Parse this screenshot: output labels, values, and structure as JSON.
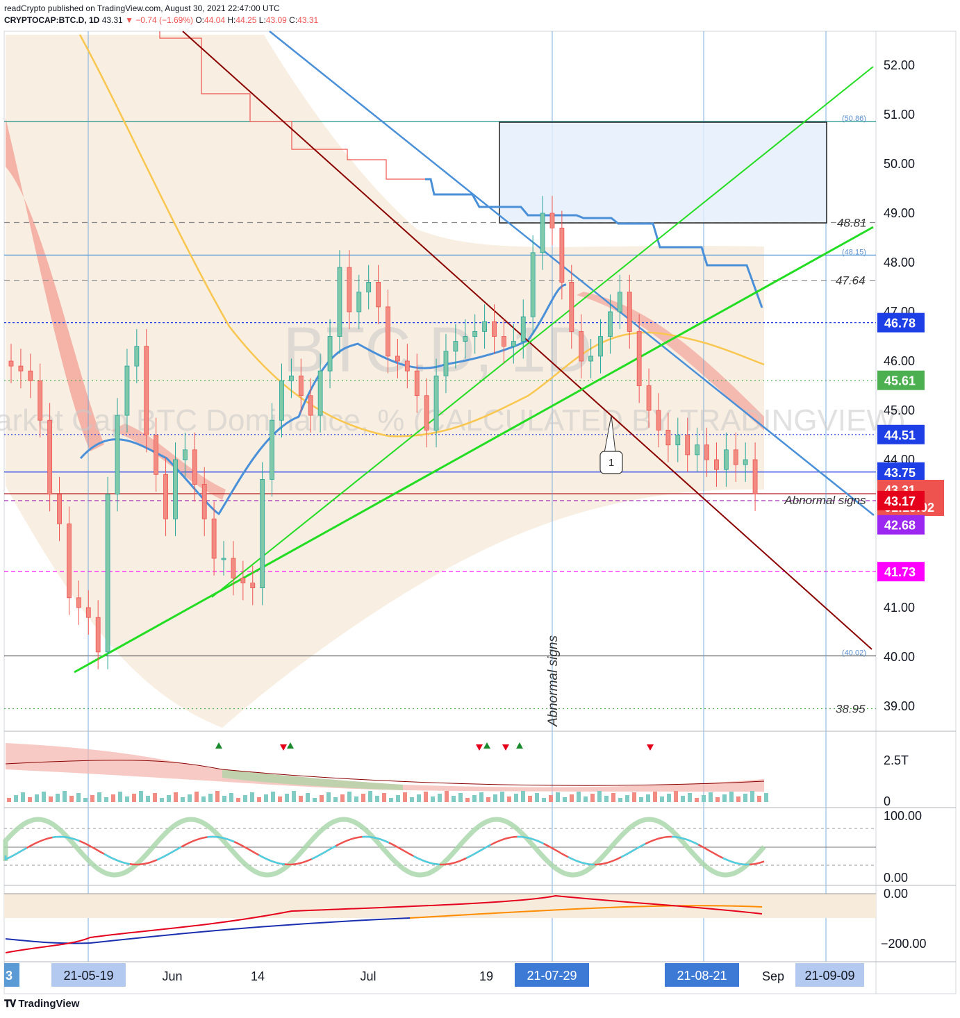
{
  "header": {
    "line1": "readCrypto published on TradingView.com, August 30, 2021 22:47:00 UTC",
    "symbol": "CRYPTOCAP:BTC.D, 1D",
    "last": "43.31",
    "change": "▼ −0.74 (−1.69%)",
    "o_label": "O:",
    "o": "44.04",
    "h_label": "H:",
    "h": "44.25",
    "l_label": "L:",
    "l": "43.09",
    "c_label": "C:",
    "c": "43.31"
  },
  "watermark": {
    "big": "BTC.D, 1D",
    "sub": "Market Cap BTC Dominance, % (CALCULATED BY TRADINGVIEW)"
  },
  "footer": {
    "logo_text": "17 TradingView"
  },
  "colors": {
    "up": "#26a69a",
    "down": "#ef5350",
    "band": "#f7ebdc",
    "blue_line": "#4a90d9",
    "green_line": "#22dd22",
    "dark_red": "#8b0000"
  },
  "chart_data": [
    {
      "type": "line",
      "title": "BTC.D, 1D",
      "subtitle": "Market Cap BTC Dominance, % (CALCULATED BY TRADINGVIEW)",
      "price_ticks": [
        "52.00",
        "51.00",
        "50.00",
        "49.00",
        "48.00",
        "47.00",
        "46.00",
        "45.00",
        "44.00",
        "41.00",
        "40.00",
        "39.00"
      ],
      "ylim": [
        38.5,
        52.8
      ],
      "x_ticks": [
        "Jun",
        "14",
        "Jul",
        "19",
        "Sep"
      ],
      "x_markers": [
        "21-05-19",
        "21-07-29",
        "21-08-21",
        "21-09-09"
      ],
      "price_tags": [
        {
          "value": "46.78",
          "color": "#1e3ee6"
        },
        {
          "value": "45.61",
          "color": "#4caf50"
        },
        {
          "value": "44.51",
          "color": "#1e3ee6"
        },
        {
          "value": "43.75",
          "color": "#1e3ee6"
        },
        {
          "value": "43.31",
          "color": "#ef5350",
          "timer": "01:13:02"
        },
        {
          "value": "43.17",
          "color": "#e5001b"
        },
        {
          "value": "42.68",
          "color": "#9c27f0"
        },
        {
          "value": "41.73",
          "color": "#ff00ff"
        }
      ],
      "line_labels": [
        {
          "text": "(50.86)",
          "value": 50.86
        },
        {
          "text": "48.81",
          "value": 48.81
        },
        {
          "text": "(48.15)",
          "value": 48.15
        },
        {
          "text": "47.64",
          "value": 47.64
        },
        {
          "text": "(40.02)",
          "value": 40.02
        },
        {
          "text": "38.95",
          "value": 38.95
        }
      ],
      "annotations": [
        "Abnormal signs",
        "Abnormal signs",
        "1"
      ],
      "candles_close_approx": [
        45.9,
        45.8,
        45.6,
        44.8,
        43.3,
        42.7,
        41.2,
        41.0,
        40.8,
        40.1,
        43.3,
        44.9,
        45.9,
        46.3,
        44.5,
        43.7,
        42.8,
        44.0,
        44.2,
        43.5,
        42.8,
        42.0,
        42.0,
        41.6,
        41.5,
        41.4,
        43.6,
        44.8,
        45.6,
        45.7,
        45.3,
        44.9,
        45.8,
        46.5,
        47.9,
        47.0,
        47.4,
        47.6,
        47.1,
        46.1,
        46.0,
        45.8,
        45.3,
        44.6,
        45.7,
        46.2,
        46.4,
        46.5,
        46.6,
        46.8,
        46.5,
        46.3,
        46.4,
        46.9,
        48.2,
        49.0,
        48.7,
        47.6,
        46.6,
        46.0,
        46.1,
        46.5,
        47.0,
        47.4,
        46.6,
        45.5,
        45.0,
        44.6,
        44.3,
        44.5,
        44.1,
        44.3,
        44.0,
        43.8,
        44.2,
        43.9,
        44.0,
        43.31
      ]
    },
    {
      "type": "area",
      "title": "",
      "yticks": [
        "2.5T",
        "0"
      ]
    },
    {
      "type": "line",
      "title": "",
      "yticks": [
        "100.00",
        "0.00"
      ]
    },
    {
      "type": "line",
      "title": "",
      "yticks": [
        "0.00",
        "−200.00"
      ]
    }
  ]
}
